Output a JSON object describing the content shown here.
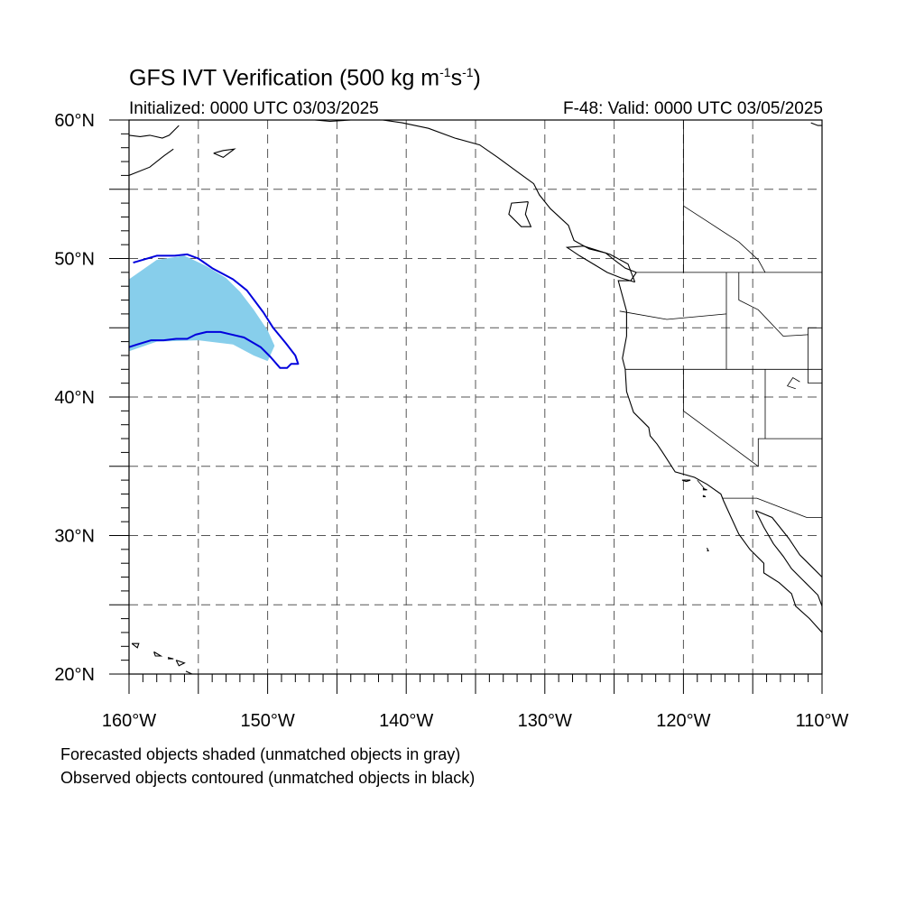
{
  "header": {
    "title_main": "GFS IVT Verification (500 kg m",
    "title_exp1": "-1",
    "title_mid": "s",
    "title_exp2": "-1",
    "title_end": ")",
    "initialized": "Initialized: 0000 UTC 03/03/2025",
    "valid": "F-48: Valid: 0000 UTC 03/05/2025"
  },
  "map": {
    "lon_range": [
      -160,
      -110
    ],
    "lat_range": [
      20,
      60
    ],
    "gridline_interval_deg": 5,
    "gridlines": "dashed",
    "lat_ticks": [
      {
        "value": 60,
        "label": "60°N"
      },
      {
        "value": 50,
        "label": "50°N"
      },
      {
        "value": 40,
        "label": "40°N"
      },
      {
        "value": 30,
        "label": "30°N"
      },
      {
        "value": 20,
        "label": "20°N"
      }
    ],
    "lon_ticks": [
      {
        "value": -160,
        "label": "160°W"
      },
      {
        "value": -150,
        "label": "150°W"
      },
      {
        "value": -140,
        "label": "140°W"
      },
      {
        "value": -130,
        "label": "130°W"
      },
      {
        "value": -120,
        "label": "120°W"
      },
      {
        "value": -110,
        "label": "110°W"
      }
    ],
    "colors": {
      "forecast_fill": "#87ceeb",
      "forecast_unmatched_fill": "#bfbfbf",
      "observed_contour": "#0000dd",
      "coastline": "#000000",
      "grid": "#555555"
    },
    "forecast_object": [
      [
        -160,
        48.5
      ],
      [
        -158,
        49.9
      ],
      [
        -156,
        50.2
      ],
      [
        -154.5,
        49.5
      ],
      [
        -153,
        48.6
      ],
      [
        -152,
        47.6
      ],
      [
        -151,
        46.3
      ],
      [
        -150,
        44.8
      ],
      [
        -149.5,
        43.7
      ],
      [
        -150,
        42.6
      ],
      [
        -151,
        43.0
      ],
      [
        -152.5,
        43.8
      ],
      [
        -155,
        44.1
      ],
      [
        -158,
        44.0
      ],
      [
        -160,
        43.3
      ]
    ],
    "observed_contour": [
      [
        -159.7,
        49.7
      ],
      [
        -158,
        50.2
      ],
      [
        -156.7,
        50.2
      ],
      [
        -155.8,
        50.3
      ],
      [
        -155,
        50.0
      ],
      [
        -154,
        49.3
      ],
      [
        -152.5,
        48.5
      ],
      [
        -151.5,
        47.7
      ],
      [
        -150.3,
        46.1
      ],
      [
        -149.6,
        45.0
      ],
      [
        -148.7,
        43.9
      ],
      [
        -148.0,
        43.0
      ],
      [
        -147.8,
        42.4
      ],
      [
        -148.3,
        42.4
      ],
      [
        -148.6,
        42.1
      ],
      [
        -149.1,
        42.1
      ],
      [
        -149.8,
        42.9
      ],
      [
        -150.5,
        43.6
      ],
      [
        -151.7,
        44.3
      ],
      [
        -153.4,
        44.7
      ],
      [
        -154.4,
        44.7
      ],
      [
        -155.2,
        44.5
      ],
      [
        -155.8,
        44.2
      ],
      [
        -156.6,
        44.2
      ],
      [
        -157.5,
        44.1
      ],
      [
        -158.4,
        44.1
      ],
      [
        -159.4,
        43.8
      ],
      [
        -160,
        43.6
      ]
    ],
    "coastlines": [
      [
        [
          -123.4,
          49.0
        ],
        [
          -123.8,
          48.4
        ],
        [
          -124.7,
          48.4
        ],
        [
          -124.1,
          46.2
        ],
        [
          -124.1,
          44.4
        ],
        [
          -124.4,
          42.8
        ],
        [
          -124.2,
          42.0
        ],
        [
          -124.1,
          40.4
        ],
        [
          -123.6,
          38.9
        ],
        [
          -122.5,
          37.8
        ],
        [
          -122.4,
          37.2
        ],
        [
          -121.9,
          36.6
        ],
        [
          -121.5,
          36.0
        ],
        [
          -120.6,
          34.6
        ],
        [
          -119.2,
          34.2
        ],
        [
          -118.3,
          33.7
        ],
        [
          -117.3,
          33.0
        ],
        [
          -117.1,
          32.5
        ],
        [
          -116.6,
          31.4
        ],
        [
          -116.0,
          30.1
        ],
        [
          -115.2,
          29.0
        ],
        [
          -114.2,
          28.0
        ],
        [
          -114.2,
          27.3
        ],
        [
          -113.1,
          26.6
        ],
        [
          -112.2,
          25.8
        ],
        [
          -111.9,
          24.9
        ],
        [
          -110.9,
          24.0
        ],
        [
          -110.0,
          23.0
        ]
      ],
      [
        [
          -114.8,
          31.8
        ],
        [
          -114.2,
          30.6
        ],
        [
          -113.5,
          29.4
        ],
        [
          -112.8,
          28.5
        ],
        [
          -112.2,
          27.6
        ],
        [
          -111.2,
          26.6
        ],
        [
          -110.3,
          25.7
        ],
        [
          -110.0,
          24.9
        ]
      ],
      [
        [
          -114.8,
          31.8
        ],
        [
          -113.6,
          31.3
        ],
        [
          -112.4,
          29.8
        ],
        [
          -111.6,
          28.6
        ],
        [
          -110.9,
          27.9
        ],
        [
          -110.0,
          27.0
        ]
      ],
      [
        [
          -123.4,
          49.0
        ],
        [
          -124.2,
          49.3
        ],
        [
          -125.0,
          49.9
        ],
        [
          -125.6,
          50.4
        ],
        [
          -126.8,
          50.7
        ],
        [
          -127.9,
          51.3
        ],
        [
          -128.3,
          52.4
        ],
        [
          -129.6,
          53.6
        ],
        [
          -130.4,
          54.6
        ],
        [
          -130.8,
          55.4
        ],
        [
          -131.9,
          56.2
        ],
        [
          -133.4,
          57.3
        ],
        [
          -134.7,
          58.2
        ],
        [
          -136.5,
          58.7
        ],
        [
          -138.4,
          59.4
        ],
        [
          -140.3,
          59.8
        ],
        [
          -141.7,
          60.0
        ]
      ],
      [
        [
          -123.5,
          48.3
        ],
        [
          -124.5,
          48.6
        ],
        [
          -125.5,
          49.0
        ],
        [
          -126.5,
          49.6
        ],
        [
          -127.5,
          50.2
        ],
        [
          -128.4,
          50.8
        ],
        [
          -127.2,
          50.9
        ],
        [
          -125.3,
          50.3
        ],
        [
          -124.0,
          49.6
        ],
        [
          -123.5,
          48.3
        ]
      ],
      [
        [
          -131.2,
          54.1
        ],
        [
          -132.4,
          54.0
        ],
        [
          -132.6,
          53.2
        ],
        [
          -131.7,
          52.3
        ],
        [
          -131.0,
          52.3
        ],
        [
          -131.4,
          53.2
        ],
        [
          -131.2,
          54.1
        ]
      ],
      [
        [
          -160.0,
          58.9
        ],
        [
          -159.2,
          58.8
        ],
        [
          -158.5,
          58.9
        ],
        [
          -157.6,
          58.7
        ],
        [
          -157.1,
          58.9
        ],
        [
          -156.4,
          59.6
        ]
      ],
      [
        [
          -160.0,
          56.0
        ],
        [
          -158.5,
          56.6
        ],
        [
          -157.5,
          57.4
        ],
        [
          -156.8,
          57.9
        ]
      ],
      [
        [
          -153.9,
          57.6
        ],
        [
          -153.2,
          57.8
        ],
        [
          -152.4,
          57.9
        ],
        [
          -153.2,
          57.3
        ],
        [
          -153.9,
          57.6
        ]
      ],
      [
        [
          -146.6,
          60.0
        ],
        [
          -145.5,
          59.9
        ],
        [
          -144.0,
          60.0
        ]
      ],
      [
        [
          -111.2,
          60.0
        ],
        [
          -110.0,
          60.0
        ]
      ],
      [
        [
          -110.8,
          59.8
        ],
        [
          -110.3,
          59.6
        ],
        [
          -110.0,
          59.6
        ]
      ]
    ],
    "borders": [
      [
        [
          -123.4,
          49.0
        ],
        [
          -110.0,
          49.0
        ]
      ],
      [
        [
          -124.2,
          42.0
        ],
        [
          -110.0,
          42.0
        ]
      ],
      [
        [
          -120.0,
          42.0
        ],
        [
          -120.0,
          39.0
        ],
        [
          -114.6,
          35.0
        ]
      ],
      [
        [
          -124.6,
          46.2
        ],
        [
          -121.2,
          45.6
        ],
        [
          -116.9,
          46.0
        ]
      ],
      [
        [
          -116.9,
          49.0
        ],
        [
          -116.9,
          42.0
        ]
      ],
      [
        [
          -117.2,
          32.7
        ],
        [
          -114.7,
          32.7
        ],
        [
          -111.1,
          31.3
        ],
        [
          -110.0,
          31.3
        ]
      ],
      [
        [
          -114.6,
          35.0
        ],
        [
          -114.6,
          37.0
        ],
        [
          -110.0,
          37.0
        ]
      ],
      [
        [
          -114.1,
          42.0
        ],
        [
          -114.1,
          37.0
        ]
      ],
      [
        [
          -111.0,
          45.0
        ],
        [
          -110.0,
          45.0
        ]
      ],
      [
        [
          -111.0,
          45.0
        ],
        [
          -111.0,
          41.0
        ],
        [
          -110.0,
          41.0
        ]
      ],
      [
        [
          -116.0,
          49.0
        ],
        [
          -116.0,
          47.0
        ],
        [
          -114.6,
          46.3
        ],
        [
          -112.8,
          44.4
        ],
        [
          -111.0,
          44.5
        ]
      ],
      [
        [
          -120.0,
          60.0
        ],
        [
          -120.0,
          49.0
        ]
      ],
      [
        [
          -120.0,
          53.8
        ],
        [
          -118.0,
          52.5
        ],
        [
          -116.0,
          51.2
        ],
        [
          -114.6,
          49.9
        ],
        [
          -114.1,
          49.0
        ]
      ],
      [
        [
          -119.0,
          34.0
        ],
        [
          -118.5,
          33.4
        ]
      ],
      [
        [
          -111.6,
          41.1
        ],
        [
          -112.1,
          41.4
        ],
        [
          -112.5,
          40.8
        ],
        [
          -111.9,
          40.6
        ]
      ]
    ],
    "islands": [
      [
        [
          -159.8,
          22.2
        ],
        [
          -159.3,
          22.2
        ],
        [
          -159.4,
          21.9
        ],
        [
          -159.8,
          22.2
        ]
      ],
      [
        [
          -158.2,
          21.6
        ],
        [
          -157.7,
          21.3
        ],
        [
          -158.1,
          21.3
        ],
        [
          -158.2,
          21.6
        ]
      ],
      [
        [
          -157.2,
          21.2
        ],
        [
          -156.8,
          21.1
        ],
        [
          -157.2,
          21.1
        ]
      ],
      [
        [
          -156.6,
          21.0
        ],
        [
          -156.0,
          20.8
        ],
        [
          -156.4,
          20.6
        ],
        [
          -156.6,
          21.0
        ]
      ],
      [
        [
          -155.9,
          20.2
        ],
        [
          -155.0,
          19.8
        ],
        [
          -155.6,
          19.9
        ]
      ],
      [
        [
          -118.6,
          33.4
        ],
        [
          -118.3,
          33.3
        ],
        [
          -118.6,
          33.3
        ]
      ],
      [
        [
          -118.6,
          32.9
        ],
        [
          -118.4,
          32.8
        ],
        [
          -118.6,
          32.8
        ]
      ],
      [
        [
          -120.1,
          34.0
        ],
        [
          -119.5,
          34.0
        ],
        [
          -119.8,
          33.9
        ],
        [
          -120.1,
          34.0
        ]
      ],
      [
        [
          -118.3,
          29.1
        ],
        [
          -118.2,
          28.9
        ],
        [
          -118.3,
          28.9
        ]
      ]
    ]
  },
  "notes": {
    "line1": "Forecasted objects shaded (unmatched objects in gray)",
    "line2": "Observed objects contoured (unmatched objects in black)"
  }
}
